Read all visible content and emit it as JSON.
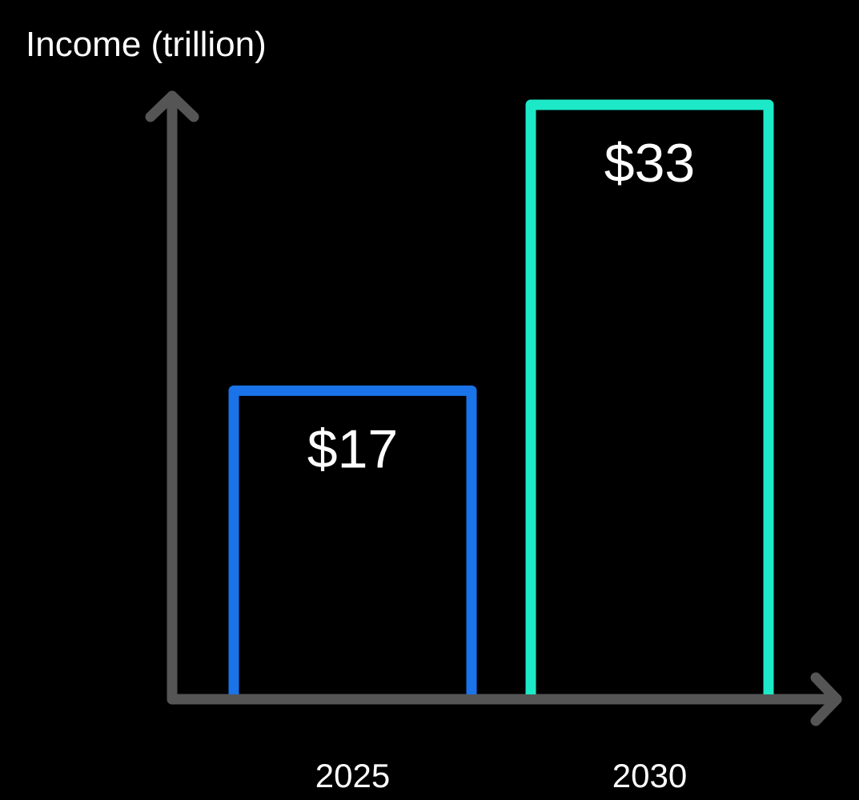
{
  "chart_data": {
    "type": "bar",
    "ylabel": "Income (trillion)",
    "xlabel": "",
    "categories": [
      "2025",
      "2030"
    ],
    "values": [
      17,
      33
    ],
    "value_labels": [
      "$17",
      "$33"
    ],
    "bar_colors": [
      "#1a73e8",
      "#1de9c8"
    ],
    "axis_color": "#555555",
    "background": "#000000",
    "bar_style": "outlined",
    "ylim": [
      0,
      33
    ],
    "grid": false,
    "legend": "none"
  }
}
